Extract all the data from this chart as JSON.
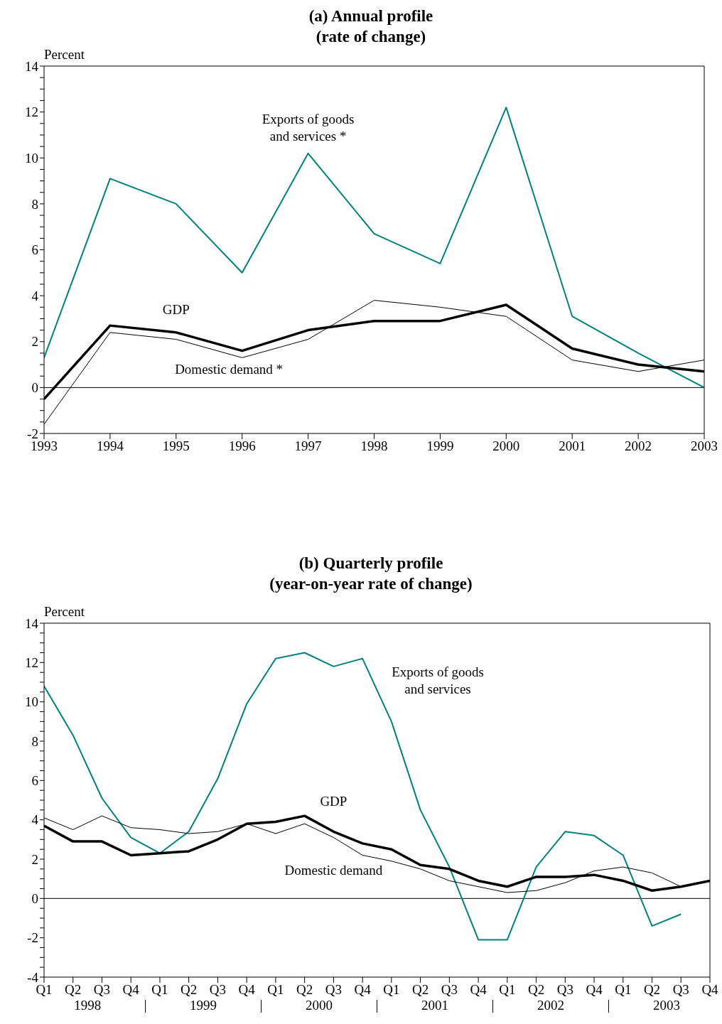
{
  "chart_data": [
    {
      "type": "line",
      "title": "(a) Annual profile",
      "subtitle": "(rate of change)",
      "ylabel": "Percent",
      "x": [
        1993,
        1994,
        1995,
        1996,
        1997,
        1998,
        1999,
        2000,
        2001,
        2002,
        2003
      ],
      "series": [
        {
          "name": "Exports of goods and services *",
          "color": "#008080",
          "values": [
            1.3,
            9.1,
            8.0,
            5.0,
            10.2,
            6.7,
            5.4,
            12.2,
            3.1,
            1.5,
            0.0
          ]
        },
        {
          "name": "GDP",
          "color": "#000000",
          "values": [
            -0.5,
            2.7,
            2.4,
            1.6,
            2.5,
            2.9,
            2.9,
            3.6,
            1.7,
            1.0,
            0.7
          ]
        },
        {
          "name": "Domestic demand *",
          "color": "#000000",
          "values": [
            -1.6,
            2.4,
            2.1,
            1.3,
            2.1,
            3.8,
            3.5,
            3.1,
            1.2,
            0.7,
            1.2
          ]
        }
      ],
      "xlim": [
        1993,
        2003
      ],
      "xticks": [
        1993,
        1994,
        1995,
        1996,
        1997,
        1998,
        1999,
        2000,
        2001,
        2002,
        2003
      ],
      "ylim": [
        -2,
        14
      ],
      "yticks": [
        -2,
        {
          "value": -1.5,
          "label": null
        },
        {
          "value": -1,
          "label": null
        },
        {
          "value": -0.5,
          "label": null
        },
        0,
        {
          "value": 0.5,
          "label": null
        },
        {
          "value": 1,
          "label": null
        },
        {
          "value": 1.5,
          "label": null
        },
        2,
        {
          "value": 2.5,
          "label": null
        },
        {
          "value": 3,
          "label": null
        },
        {
          "value": 3.5,
          "label": null
        },
        4,
        {
          "value": 4.5,
          "label": null
        },
        {
          "value": 5,
          "label": null
        },
        {
          "value": 5.5,
          "label": null
        },
        6,
        {
          "value": 6.5,
          "label": null
        },
        {
          "value": 7,
          "label": null
        },
        {
          "value": 7.5,
          "label": null
        },
        8,
        {
          "value": 8.5,
          "label": null
        },
        {
          "value": 9,
          "label": null
        },
        {
          "value": 9.5,
          "label": null
        },
        10,
        {
          "value": 10.5,
          "label": null
        },
        {
          "value": 11,
          "label": null
        },
        {
          "value": 11.5,
          "label": null
        },
        12,
        {
          "value": 12.5,
          "label": null
        },
        {
          "value": 13,
          "label": null
        },
        {
          "value": 13.5,
          "label": null
        },
        14
      ],
      "ref_lines": [
        {
          "axis": "y",
          "value": 0,
          "color": "#000000"
        }
      ]
    },
    {
      "type": "line",
      "title": "(b) Quarterly profile",
      "subtitle": "(year-on-year rate of change)",
      "ylabel": "Percent",
      "categories": [
        "Q1",
        "Q2",
        "Q3",
        "Q4",
        "Q1",
        "Q2",
        "Q3",
        "Q4",
        "Q1",
        "Q2",
        "Q3",
        "Q4",
        "Q1",
        "Q2",
        "Q3",
        "Q4",
        "Q1",
        "Q2",
        "Q3",
        "Q4",
        "Q1",
        "Q2",
        "Q3",
        "Q4"
      ],
      "series": [
        {
          "name": "Exports of goods and services",
          "color": "#008080",
          "values": [
            10.8,
            8.3,
            5.1,
            3.1,
            2.3,
            3.4,
            6.1,
            9.9,
            12.2,
            12.5,
            11.8,
            12.2,
            9.0,
            4.5,
            1.6,
            -2.1,
            -2.1,
            1.6,
            3.4,
            3.2,
            2.2,
            -1.4,
            -0.8,
            null
          ]
        },
        {
          "name": "GDP",
          "color": "#000000",
          "values": [
            3.7,
            2.9,
            2.9,
            2.2,
            2.3,
            2.4,
            3.0,
            3.8,
            3.9,
            4.2,
            3.4,
            2.8,
            2.5,
            1.7,
            1.5,
            0.9,
            0.6,
            1.1,
            1.1,
            1.2,
            0.9,
            0.4,
            0.6,
            0.9
          ]
        },
        {
          "name": "Domestic demand",
          "color": "#000000",
          "values": [
            4.1,
            3.5,
            4.2,
            3.6,
            3.5,
            3.3,
            3.4,
            3.8,
            3.3,
            3.8,
            3.1,
            2.2,
            1.9,
            1.5,
            0.9,
            0.6,
            0.3,
            0.4,
            0.8,
            1.4,
            1.6,
            1.3,
            0.6,
            null
          ]
        }
      ],
      "annotations": [
        "1998",
        "1999",
        "2000",
        "2001",
        "2002",
        "2003"
      ],
      "ylim": [
        -4,
        14
      ],
      "yticks": [
        -4,
        {
          "value": -3.5,
          "label": null
        },
        {
          "value": -3,
          "label": null
        },
        {
          "value": -2.5,
          "label": null
        },
        -2,
        {
          "value": -1.5,
          "label": null
        },
        {
          "value": -1,
          "label": null
        },
        {
          "value": -0.5,
          "label": null
        },
        0,
        {
          "value": 0.5,
          "label": null
        },
        {
          "value": 1,
          "label": null
        },
        {
          "value": 1.5,
          "label": null
        },
        2,
        {
          "value": 2.5,
          "label": null
        },
        {
          "value": 3,
          "label": null
        },
        {
          "value": 3.5,
          "label": null
        },
        4,
        {
          "value": 4.5,
          "label": null
        },
        {
          "value": 5,
          "label": null
        },
        {
          "value": 5.5,
          "label": null
        },
        6,
        {
          "value": 6.5,
          "label": null
        },
        {
          "value": 7,
          "label": null
        },
        {
          "value": 7.5,
          "label": null
        },
        8,
        {
          "value": 8.5,
          "label": null
        },
        {
          "value": 9,
          "label": null
        },
        {
          "value": 9.5,
          "label": null
        },
        10,
        {
          "value": 10.5,
          "label": null
        },
        {
          "value": 11,
          "label": null
        },
        {
          "value": 11.5,
          "label": null
        },
        12,
        {
          "value": 12.5,
          "label": null
        },
        {
          "value": 13,
          "label": null
        },
        {
          "value": 13.5,
          "label": null
        },
        14
      ],
      "ref_lines": [
        {
          "axis": "y",
          "value": 0,
          "color": "#000000"
        }
      ]
    }
  ]
}
